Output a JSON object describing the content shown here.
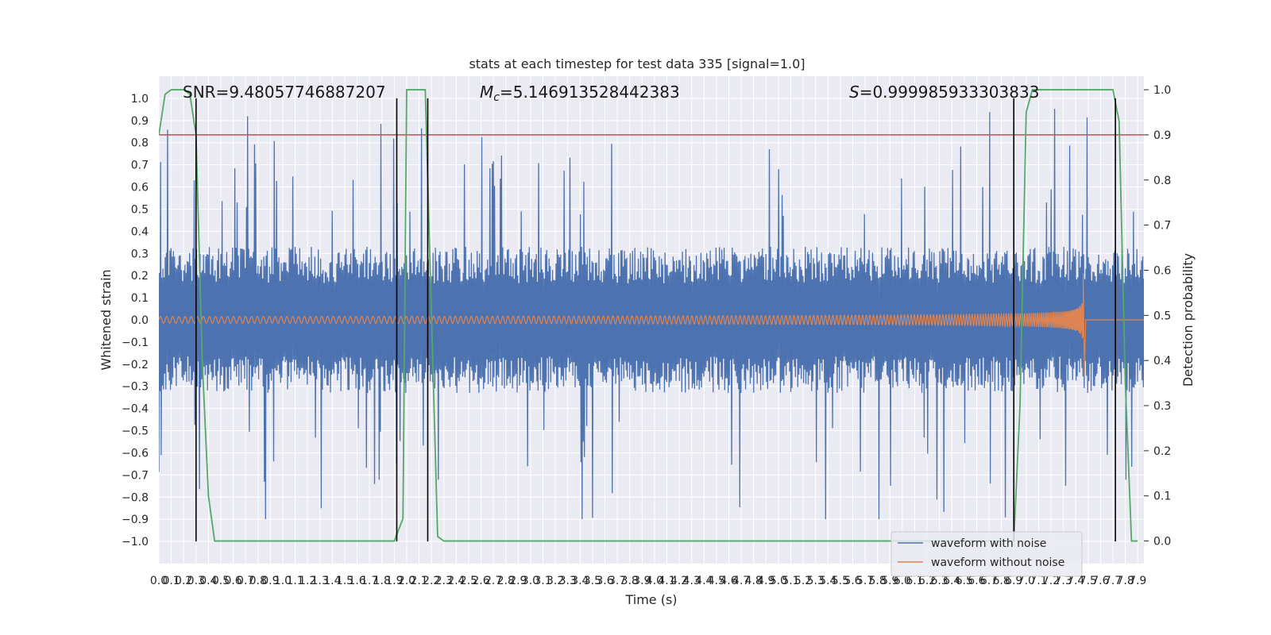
{
  "chart_data": {
    "type": "line",
    "title": "stats at each timestep for test data 335 [signal=1.0]",
    "xlabel": "Time (s)",
    "ylabel": "Whitened strain",
    "y2label": "Detection probability",
    "xlim": [
      0.0,
      7.95
    ],
    "ylim": [
      -1.1,
      1.1
    ],
    "y2lim": [
      -0.05,
      1.03
    ],
    "x_ticks": [
      0.0,
      0.1,
      0.2,
      0.3,
      0.4,
      0.5,
      0.6,
      0.7,
      0.8,
      0.9,
      1.0,
      1.1,
      1.2,
      1.3,
      1.4,
      1.5,
      1.6,
      1.7,
      1.8,
      1.9,
      2.0,
      2.1,
      2.2,
      2.3,
      2.4,
      2.5,
      2.6,
      2.7,
      2.8,
      2.9,
      3.0,
      3.1,
      3.2,
      3.3,
      3.4,
      3.5,
      3.6,
      3.7,
      3.8,
      3.9,
      4.0,
      4.1,
      4.2,
      4.3,
      4.4,
      4.5,
      4.6,
      4.7,
      4.8,
      4.9,
      5.0,
      5.1,
      5.2,
      5.3,
      5.4,
      5.5,
      5.6,
      5.7,
      5.8,
      5.9,
      6.0,
      6.1,
      6.2,
      6.3,
      6.4,
      6.5,
      6.6,
      6.7,
      6.8,
      6.9,
      7.0,
      7.1,
      7.2,
      7.3,
      7.4,
      7.5,
      7.6,
      7.7,
      7.8,
      7.9
    ],
    "x_tick_labels": [
      "0.0",
      "0.1",
      "0.2",
      "0.3",
      "0.4",
      "0.5",
      "0.6",
      "0.7",
      "0.8",
      "0.9",
      "1.0",
      "1.1",
      "1.2",
      "1.3",
      "1.4",
      "1.5",
      "1.6",
      "1.7",
      "1.8",
      "1.9",
      "2.0",
      "2.1",
      "2.2",
      "2.3",
      "2.4",
      "2.5",
      "2.6",
      "2.7",
      "2.8",
      "2.9",
      "3.0",
      "3.1",
      "3.2",
      "3.3",
      "3.4",
      "3.5",
      "3.6",
      "3.7",
      "3.8",
      "3.9",
      "4.0",
      "4.1",
      "4.2",
      "4.3",
      "4.4",
      "4.5",
      "4.6",
      "4.7",
      "4.8",
      "4.9",
      "5.0",
      "5.1",
      "5.2",
      "5.3",
      "5.4",
      "5.5",
      "5.6",
      "5.7",
      "5.8",
      "5.9",
      "6.0",
      "6.1",
      "6.2",
      "6.3",
      "6.4",
      "6.5",
      "6.6",
      "6.7",
      "6.8",
      "6.9",
      "7.0",
      "7.1",
      "7.2",
      "7.3",
      "7.4",
      "7.5",
      "7.6",
      "7.7",
      "7.8",
      "7.9"
    ],
    "y_ticks": [
      -1.0,
      -0.9,
      -0.8,
      -0.7,
      -0.6,
      -0.5,
      -0.4,
      -0.3,
      -0.2,
      -0.1,
      0.0,
      0.1,
      0.2,
      0.3,
      0.4,
      0.5,
      0.6,
      0.7,
      0.8,
      0.9,
      1.0
    ],
    "y_tick_labels": [
      "−1.0",
      "−0.9",
      "−0.8",
      "−0.7",
      "−0.6",
      "−0.5",
      "−0.4",
      "−0.3",
      "−0.2",
      "−0.1",
      "0.0",
      "0.1",
      "0.2",
      "0.3",
      "0.4",
      "0.5",
      "0.6",
      "0.7",
      "0.8",
      "0.9",
      "1.0"
    ],
    "y2_ticks": [
      0.0,
      0.1,
      0.2,
      0.3,
      0.4,
      0.5,
      0.6,
      0.7,
      0.8,
      0.9,
      1.0
    ],
    "y2_tick_labels": [
      "0.0",
      "0.1",
      "0.2",
      "0.3",
      "0.4",
      "0.5",
      "0.6",
      "0.7",
      "0.8",
      "0.9",
      "1.0"
    ],
    "grid": true,
    "legend": {
      "placement": "lower-right",
      "entries": [
        {
          "label": "waveform with noise",
          "color": "#4c72b0"
        },
        {
          "label": "waveform without noise",
          "color": "#dd8452"
        }
      ]
    },
    "annotations": {
      "snr": {
        "prefix": "SNR=",
        "value": "9.48057746887207"
      },
      "mc": {
        "symbol": "M",
        "subscript": "c",
        "value": "=5.146913528442383"
      },
      "s": {
        "symbol": "S",
        "value": "=0.999985933303833"
      }
    },
    "series": [
      {
        "name": "waveform with noise",
        "kind": "noise",
        "color": "#4c72b0",
        "x_range": [
          0.0,
          7.95
        ],
        "typical_amplitude": 0.3,
        "peak_amplitude": [
          -0.9,
          0.96
        ]
      },
      {
        "name": "waveform without noise",
        "kind": "chirp",
        "color": "#dd8452",
        "x_range": [
          0.0,
          7.46
        ],
        "start_amplitude": 0.015,
        "peak_time": 7.46,
        "peak_values": [
          -0.25,
          0.21
        ]
      },
      {
        "name": "",
        "kind": "probability",
        "axis": "y2",
        "color": "#55a868",
        "x": [
          0.0,
          0.05,
          0.1,
          0.15,
          0.2,
          0.25,
          0.3,
          0.35,
          0.4,
          0.45,
          1.6,
          1.7,
          1.8,
          1.9,
          1.97,
          2.0,
          2.05,
          2.1,
          2.15,
          2.2,
          2.25,
          2.3,
          2.35,
          6.9,
          6.95,
          7.0,
          7.05,
          7.1,
          7.15,
          7.2,
          7.3,
          7.4,
          7.5,
          7.6,
          7.65,
          7.7,
          7.75,
          7.8,
          7.85,
          7.9
        ],
        "y": [
          0.9,
          0.99,
          1.0,
          1.0,
          1.0,
          0.99,
          0.9,
          0.4,
          0.1,
          0.0,
          0.0,
          0.0,
          0.0,
          0.0,
          0.05,
          1.0,
          1.0,
          1.0,
          1.0,
          0.5,
          0.01,
          0.0,
          0.0,
          0.0,
          0.3,
          0.95,
          1.0,
          1.0,
          1.0,
          1.0,
          1.0,
          1.0,
          1.0,
          1.0,
          1.0,
          1.0,
          0.93,
          0.35,
          0.0,
          0.0
        ]
      }
    ],
    "threshold_line": {
      "axis": "y2",
      "value": 0.9,
      "color": "#c44e52"
    },
    "vertical_lines": {
      "color": "#000000",
      "x": [
        0.3,
        1.92,
        2.17,
        6.9,
        7.72
      ],
      "y_range": [
        -1.0,
        1.0
      ]
    }
  }
}
